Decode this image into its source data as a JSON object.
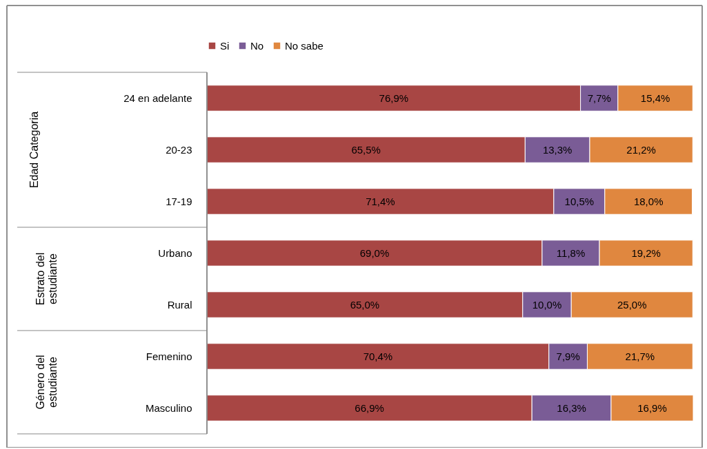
{
  "chart_data": {
    "type": "bar",
    "orientation": "horizontal",
    "stacked": true,
    "legend": "top",
    "categories": [
      "24 en adelante",
      "20-23",
      "17-19",
      "Urbano",
      "Rural",
      "Femenino",
      "Masculino"
    ],
    "series": [
      {
        "name": "Si",
        "color": "#a84644",
        "values": [
          76.9,
          65.5,
          71.4,
          69.0,
          65.0,
          70.4,
          66.9
        ],
        "value_labels": [
          "76,9%",
          "65,5%",
          "71,4%",
          "69,0%",
          "65,0%",
          "70,4%",
          "66,9%"
        ]
      },
      {
        "name": "No",
        "color": "#7a5c96",
        "values": [
          7.7,
          13.3,
          10.5,
          11.8,
          10.0,
          7.9,
          16.3
        ],
        "value_labels": [
          "7,7%",
          "13,3%",
          "10,5%",
          "11,8%",
          "10,0%",
          "7,9%",
          "16,3%"
        ]
      },
      {
        "name": "No sabe",
        "color": "#e0873f",
        "values": [
          15.4,
          21.2,
          18.0,
          19.2,
          25.0,
          21.7,
          16.9
        ],
        "value_labels": [
          "15,4%",
          "21,2%",
          "18,0%",
          "19,2%",
          "25,0%",
          "21,7%",
          "16,9%"
        ]
      }
    ],
    "annotations": [
      "Edad Categoria",
      "Estrato del estudiante",
      "Género del estudiante"
    ]
  }
}
